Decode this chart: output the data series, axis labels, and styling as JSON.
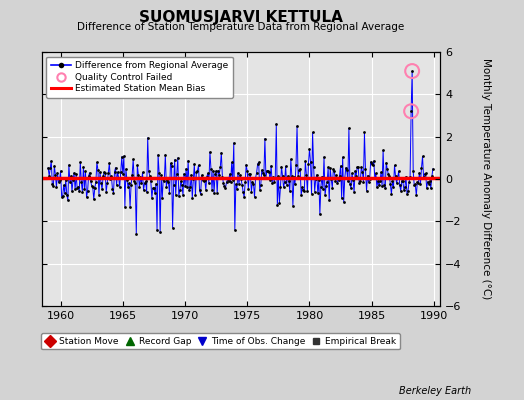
{
  "title": "SUOMUSJARVI KETTULA",
  "subtitle": "Difference of Station Temperature Data from Regional Average",
  "ylabel": "Monthly Temperature Anomaly Difference (°C)",
  "ylim": [
    -6,
    6
  ],
  "xlim": [
    1958.5,
    1990.5
  ],
  "xticks": [
    1960,
    1965,
    1970,
    1975,
    1980,
    1985,
    1990
  ],
  "yticks": [
    -6,
    -4,
    -2,
    0,
    2,
    4,
    6
  ],
  "background_color": "#d3d3d3",
  "plot_bg_color": "#e4e4e4",
  "grid_color": "#ffffff",
  "line_color": "#0000ff",
  "marker_color": "#000000",
  "bias_color": "#ff0000",
  "bias_value": 0.05,
  "footer_text": "Berkeley Earth",
  "seed": 42,
  "n_points": 372
}
